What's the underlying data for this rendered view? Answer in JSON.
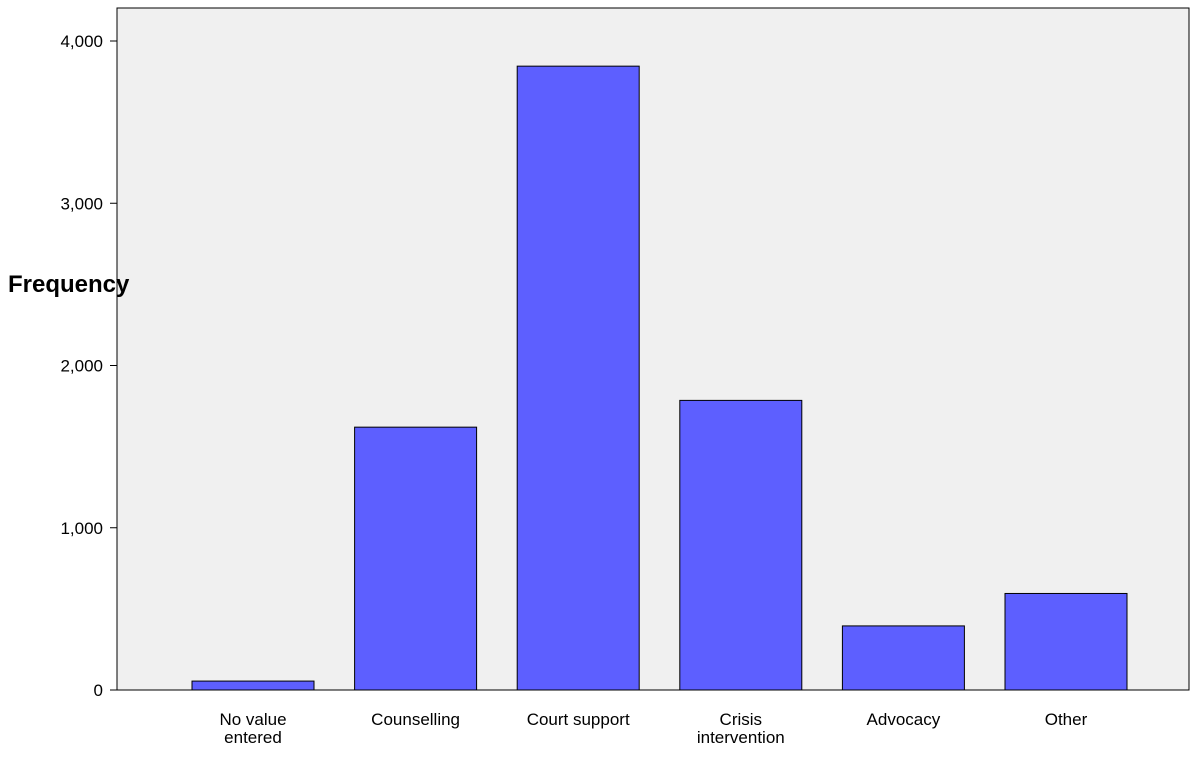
{
  "chart_data": {
    "type": "bar",
    "categories": [
      [
        "No value",
        "entered"
      ],
      [
        "Counselling"
      ],
      [
        "Court support"
      ],
      [
        "Crisis",
        "intervention"
      ],
      [
        "Advocacy"
      ],
      [
        "Other"
      ]
    ],
    "values": [
      55,
      1620,
      3845,
      1785,
      395,
      595
    ],
    "title": "",
    "xlabel": "",
    "ylabel": "Frequency",
    "ylim": [
      0,
      4000
    ],
    "yticks": [
      "0",
      "1,000",
      "2,000",
      "3,000",
      "4,000"
    ],
    "ytick_values": [
      0,
      1000,
      2000,
      3000,
      4000
    ],
    "grid": false,
    "legend": "none",
    "colors": {
      "bar_fill": "#5d5fff",
      "bar_stroke": "#000000",
      "plot_background": "#f0f0f0"
    }
  }
}
